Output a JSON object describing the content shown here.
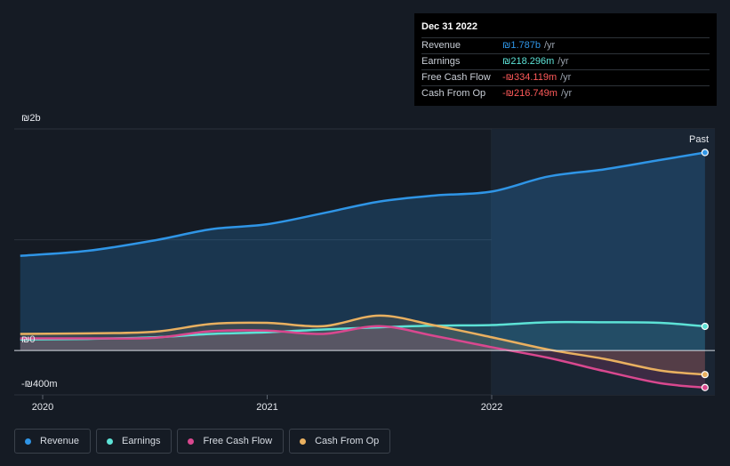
{
  "tooltip": {
    "date": "Dec 31 2022",
    "rows": [
      {
        "label": "Revenue",
        "value": "₪1.787b",
        "unit": "/yr",
        "color": "#2f95e6"
      },
      {
        "label": "Earnings",
        "value": "₪218.296m",
        "unit": "/yr",
        "color": "#5de2d6"
      },
      {
        "label": "Free Cash Flow",
        "value": "-₪334.119m",
        "unit": "/yr",
        "color": "#ff5a5a"
      },
      {
        "label": "Cash From Op",
        "value": "-₪216.749m",
        "unit": "/yr",
        "color": "#ff5a5a"
      }
    ]
  },
  "past_label": "Past",
  "legend": [
    {
      "label": "Revenue",
      "color": "#2f95e6"
    },
    {
      "label": "Earnings",
      "color": "#5de2d6"
    },
    {
      "label": "Free Cash Flow",
      "color": "#d9488f"
    },
    {
      "label": "Cash From Op",
      "color": "#e9b060"
    }
  ],
  "chart_data": {
    "type": "line",
    "y_tick_labels": [
      "₪2b",
      "₪0",
      "-₪400m"
    ],
    "y_ticks": [
      2000,
      0,
      -400
    ],
    "ylim": [
      -400,
      2000
    ],
    "x_ticks": [
      2020,
      2021,
      2022
    ],
    "x_tick_labels": [
      "2020",
      "2021",
      "2022"
    ],
    "xlim": [
      2019.9,
      2022.95
    ],
    "past_from": 2022.0,
    "grid": true,
    "series": [
      {
        "name": "Revenue",
        "color": "#2f95e6",
        "x": [
          2019.9,
          2020.2,
          2020.5,
          2020.75,
          2021.0,
          2021.25,
          2021.5,
          2021.75,
          2022.0,
          2022.25,
          2022.5,
          2022.75,
          2022.95
        ],
        "values": [
          855,
          900,
          995,
          1095,
          1140,
          1240,
          1345,
          1400,
          1435,
          1570,
          1635,
          1720,
          1787
        ]
      },
      {
        "name": "Earnings",
        "color": "#5de2d6",
        "x": [
          2019.9,
          2020.2,
          2020.5,
          2020.75,
          2021.0,
          2021.25,
          2021.5,
          2021.75,
          2022.0,
          2022.25,
          2022.5,
          2022.75,
          2022.95
        ],
        "values": [
          100,
          105,
          120,
          150,
          165,
          190,
          210,
          225,
          230,
          255,
          255,
          250,
          218
        ]
      },
      {
        "name": "Free Cash Flow",
        "color": "#d9488f",
        "x": [
          2019.9,
          2020.2,
          2020.5,
          2020.75,
          2021.0,
          2021.25,
          2021.5,
          2021.75,
          2022.0,
          2022.25,
          2022.5,
          2022.75,
          2022.95
        ],
        "values": [
          110,
          110,
          115,
          175,
          180,
          150,
          220,
          130,
          30,
          -65,
          -185,
          -295,
          -334
        ]
      },
      {
        "name": "Cash From Op",
        "color": "#e9b060",
        "x": [
          2019.9,
          2020.2,
          2020.5,
          2020.75,
          2021.0,
          2021.25,
          2021.5,
          2021.75,
          2022.0,
          2022.25,
          2022.5,
          2022.75,
          2022.95
        ],
        "values": [
          150,
          155,
          170,
          240,
          250,
          220,
          315,
          225,
          120,
          10,
          -75,
          -180,
          -217
        ]
      }
    ]
  }
}
